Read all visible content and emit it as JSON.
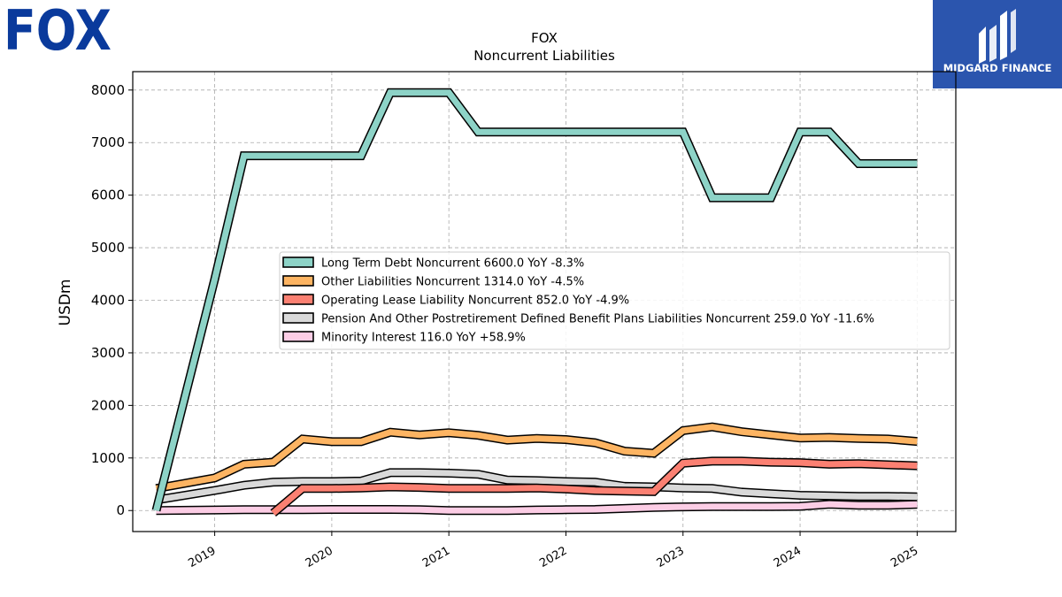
{
  "brand": {
    "left_logo_text": "FOX",
    "right_logo_text": "MIDGARD FINANCE",
    "left_logo_color": "#0a3a9c",
    "right_logo_bg": "#2b55ae"
  },
  "chart_data": {
    "type": "line",
    "title": "FOX",
    "subtitle": "Noncurrent  Liabilities",
    "ylabel": "USDm",
    "xlabel": "",
    "ylim": [
      -400,
      8350
    ],
    "xlim": [
      2018.3,
      2025.33
    ],
    "yticks": [
      0,
      1000,
      2000,
      3000,
      4000,
      5000,
      6000,
      7000,
      8000
    ],
    "xticks": [
      {
        "value": 2019,
        "label": "2019"
      },
      {
        "value": 2020,
        "label": "2020"
      },
      {
        "value": 2021,
        "label": "2021"
      },
      {
        "value": 2022,
        "label": "2022"
      },
      {
        "value": 2023,
        "label": "2023"
      },
      {
        "value": 2024,
        "label": "2024"
      },
      {
        "value": 2025,
        "label": "2025"
      }
    ],
    "grid": true,
    "legend_position": "center",
    "x": [
      2018.5,
      2019.0,
      2019.25,
      2019.5,
      2019.75,
      2020.0,
      2020.25,
      2020.5,
      2020.75,
      2021.0,
      2021.25,
      2021.5,
      2021.75,
      2022.0,
      2022.25,
      2022.5,
      2022.75,
      2023.0,
      2023.25,
      2023.5,
      2023.75,
      2024.0,
      2024.25,
      2024.5,
      2024.75,
      2025.0
    ],
    "series": [
      {
        "name": "Long Term Debt Noncurrent",
        "legend": "Long Term Debt Noncurrent  6600.0 YoY -8.3%",
        "color": "#8dd3c7",
        "values": [
          0,
          4400,
          6750,
          6750,
          6750,
          6750,
          6750,
          7950,
          7950,
          7950,
          7200,
          7200,
          7200,
          7200,
          7200,
          7200,
          7200,
          7200,
          5950,
          5950,
          5950,
          7200,
          7200,
          6600,
          6600,
          6600
        ]
      },
      {
        "name": "Other Liabilities Noncurrent",
        "legend": "Other Liabilities Noncurrent  1314.0 YoY -4.5%",
        "color": "#fdb462",
        "values": [
          420,
          620,
          880,
          920,
          1360,
          1310,
          1310,
          1490,
          1440,
          1480,
          1430,
          1340,
          1370,
          1350,
          1290,
          1130,
          1090,
          1520,
          1590,
          1500,
          1440,
          1380,
          1390,
          1370,
          1360,
          1314
        ]
      },
      {
        "name": "Operating Lease Liability Noncurrent",
        "legend": "Operating Lease Liability Noncurrent  852.0 YoY -4.9%",
        "color": "#fb8072",
        "values": [
          null,
          null,
          null,
          -50,
          420,
          420,
          430,
          450,
          440,
          420,
          420,
          420,
          430,
          410,
          380,
          370,
          360,
          900,
          940,
          940,
          920,
          910,
          880,
          890,
          870,
          852
        ]
      },
      {
        "name": "Pension And Other Postretirement Defined Benefit Plans Liabilities Noncurrent",
        "legend": "Pension And Other Postretirement Defined Benefit Plans Liabilities Noncurrent  259.0 YoY -11.6%",
        "color": "#d9d9d9",
        "values": [
          200,
          380,
          480,
          540,
          550,
          550,
          560,
          720,
          720,
          710,
          690,
          580,
          570,
          550,
          540,
          460,
          450,
          430,
          420,
          350,
          320,
          290,
          280,
          270,
          270,
          259
        ]
      },
      {
        "name": "Minority Interest",
        "legend": "Minority Interest  116.0 YoY +58.9%",
        "color": "#fccde5",
        "values": [
          0,
          10,
          15,
          15,
          15,
          20,
          20,
          20,
          15,
          0,
          0,
          0,
          10,
          15,
          20,
          40,
          60,
          70,
          75,
          75,
          75,
          80,
          120,
          100,
          100,
          116
        ]
      }
    ]
  }
}
